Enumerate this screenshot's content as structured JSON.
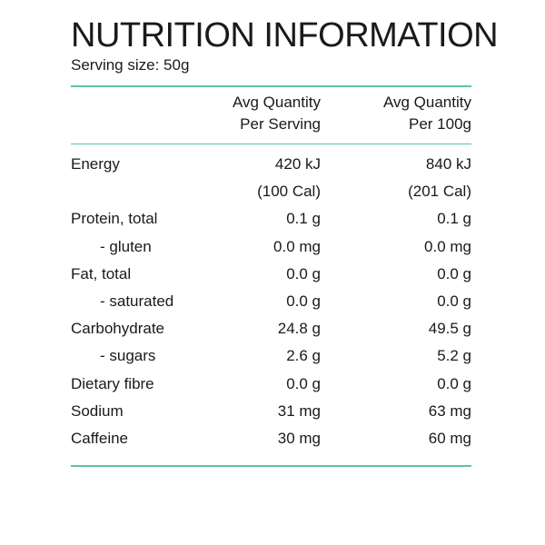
{
  "title": "NUTRITION INFORMATION",
  "serving_size": "Serving size: 50g",
  "accent_color": "#5ec4a8",
  "columns": {
    "per_serving": [
      "Avg Quantity",
      "Per Serving"
    ],
    "per_100g": [
      "Avg Quantity",
      "Per 100g"
    ]
  },
  "rows": [
    {
      "name": "Energy",
      "per_serving": "420 kJ",
      "per_100g": "840 kJ"
    },
    {
      "name": "",
      "per_serving": "(100 Cal)",
      "per_100g": "(201 Cal)"
    },
    {
      "name": "Protein, total",
      "per_serving": "0.1 g",
      "per_100g": "0.1 g"
    },
    {
      "name": "- gluten",
      "per_serving": "0.0 mg",
      "per_100g": "0.0 mg"
    },
    {
      "name": "Fat, total",
      "per_serving": "0.0 g",
      "per_100g": "0.0 g"
    },
    {
      "name": "- saturated",
      "per_serving": "0.0 g",
      "per_100g": "0.0 g"
    },
    {
      "name": "Carbohydrate",
      "per_serving": "24.8 g",
      "per_100g": "49.5 g"
    },
    {
      "name": "- sugars",
      "per_serving": "2.6 g",
      "per_100g": "5.2 g"
    },
    {
      "name": "Dietary fibre",
      "per_serving": "0.0 g",
      "per_100g": "0.0 g"
    },
    {
      "name": "Sodium",
      "per_serving": "31 mg",
      "per_100g": "63 mg"
    },
    {
      "name": "Caffeine",
      "per_serving": "30 mg",
      "per_100g": "60 mg"
    }
  ]
}
